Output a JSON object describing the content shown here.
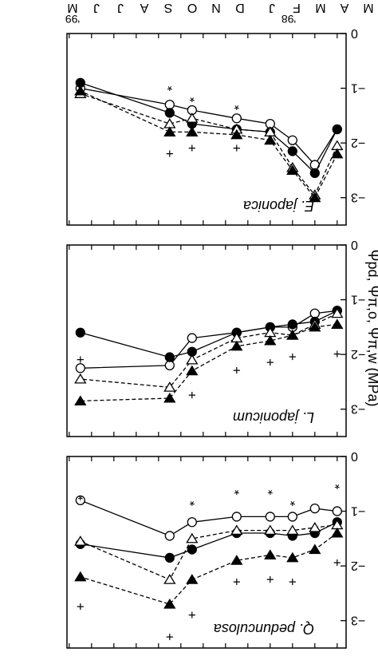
{
  "figure": {
    "orientation": "rotated-180",
    "y_axis_label": "Ψpd, Ψπ,o, Ψπ,w (MPa)",
    "x_month_labels": [
      "M",
      "A",
      "M",
      "F",
      "J",
      "D",
      "N",
      "O",
      "S",
      "A",
      "J",
      "J",
      "M"
    ],
    "year_labels": [
      "'98",
      "'99"
    ]
  },
  "chart_data": [
    {
      "type": "line",
      "panel": "top",
      "title": "Q. pedunculosa",
      "xlabel": "",
      "ylabel": "Ψpd, Ψπ,o, Ψπ,w (MPa)",
      "x": [
        0,
        1,
        2,
        3,
        4.5,
        6.5,
        7.5,
        11.5
      ],
      "ylim": [
        0,
        -3.5
      ],
      "yticks": [
        0,
        -1,
        -2,
        -3
      ],
      "series": [
        {
          "marker": "open-circle",
          "line": "solid",
          "values": [
            -1.0,
            -0.95,
            -1.1,
            -1.1,
            -1.1,
            -1.2,
            -1.45,
            -0.8
          ]
        },
        {
          "marker": "filled-circle",
          "line": "solid",
          "values": [
            -1.2,
            -1.4,
            -1.45,
            -1.4,
            -1.4,
            -1.7,
            -1.85,
            -1.6
          ]
        },
        {
          "marker": "open-triangle-down",
          "line": "dashed",
          "values": [
            -1.25,
            -1.3,
            -1.35,
            -1.35,
            -1.35,
            -1.5,
            -2.25,
            -1.55
          ]
        },
        {
          "marker": "filled-triangle-down",
          "line": "dashed",
          "values": [
            -1.4,
            -1.7,
            -1.85,
            -1.8,
            -1.9,
            -2.25,
            -2.7,
            -2.2
          ]
        }
      ],
      "annotations": {
        "plus": [
          [
            0,
            -1.95
          ],
          [
            2,
            -2.3
          ],
          [
            3,
            -2.25
          ],
          [
            4.5,
            -2.3
          ],
          [
            6.5,
            -2.9
          ],
          [
            7.5,
            -3.3
          ],
          [
            11.5,
            -2.75
          ]
        ],
        "star": [
          [
            0,
            -0.55
          ],
          [
            2,
            -0.85
          ],
          [
            3,
            -0.65
          ],
          [
            4.5,
            -0.65
          ],
          [
            6.5,
            -0.85
          ],
          [
            11.5,
            -0.75
          ]
        ]
      }
    },
    {
      "type": "line",
      "panel": "middle",
      "title": "L. japonicum",
      "xlabel": "",
      "ylabel": "",
      "x": [
        0,
        1,
        2,
        3,
        4.5,
        6.5,
        7.5,
        11.5
      ],
      "ylim": [
        0,
        -3.5
      ],
      "yticks": [
        0,
        -1,
        -2,
        -3
      ],
      "series": [
        {
          "marker": "open-circle",
          "line": "solid",
          "values": [
            -1.2,
            -1.25,
            -1.5,
            -1.5,
            -1.6,
            -1.7,
            -2.2,
            -2.25
          ]
        },
        {
          "marker": "filled-circle",
          "line": "solid",
          "values": [
            -1.2,
            -1.4,
            -1.45,
            -1.5,
            -1.6,
            -1.95,
            -2.05,
            -1.6
          ]
        },
        {
          "marker": "open-triangle-down",
          "line": "dashed",
          "values": [
            -1.25,
            -1.45,
            -1.65,
            -1.6,
            -1.7,
            -2.1,
            -2.6,
            -2.45
          ]
        },
        {
          "marker": "filled-triangle-down",
          "line": "dashed",
          "values": [
            -1.45,
            -1.5,
            -1.65,
            -1.75,
            -1.85,
            -2.3,
            -2.8,
            -2.85
          ]
        }
      ],
      "annotations": {
        "plus": [
          [
            0,
            -2.0
          ],
          [
            2,
            -2.05
          ],
          [
            3,
            -2.15
          ],
          [
            4.5,
            -2.3
          ],
          [
            6.5,
            -2.75
          ],
          [
            11.5,
            -2.1
          ]
        ],
        "star": []
      }
    },
    {
      "type": "line",
      "panel": "bottom",
      "title": "E. japonica",
      "xlabel": "",
      "ylabel": "",
      "x": [
        0,
        1,
        2,
        3,
        4.5,
        6.5,
        7.5,
        11.5
      ],
      "ylim": [
        0,
        -3.5
      ],
      "yticks": [
        0,
        -1,
        -2,
        -3
      ],
      "series": [
        {
          "marker": "open-circle",
          "line": "solid",
          "values": [
            -1.75,
            -2.4,
            -1.95,
            -1.65,
            -1.55,
            -1.4,
            -1.3,
            -1.0
          ]
        },
        {
          "marker": "filled-circle",
          "line": "solid",
          "values": [
            -1.75,
            -2.55,
            -2.15,
            -1.8,
            -1.75,
            -1.65,
            -1.45,
            -0.9
          ]
        },
        {
          "marker": "open-triangle-down",
          "line": "dashed",
          "values": [
            -2.05,
            -2.95,
            -2.45,
            -1.8,
            -1.75,
            -1.55,
            -1.65,
            -1.1
          ]
        },
        {
          "marker": "filled-triangle-down",
          "line": "dashed",
          "values": [
            -2.2,
            -3.0,
            -2.5,
            -1.95,
            -1.85,
            -1.8,
            -1.8,
            -1.05
          ]
        }
      ],
      "annotations": {
        "plus": [
          [
            6.5,
            -2.1
          ],
          [
            7.5,
            -2.2
          ],
          [
            4.5,
            -2.1
          ]
        ],
        "star": [
          [
            4.5,
            -1.35
          ],
          [
            6.5,
            -1.2
          ],
          [
            7.5,
            -1.0
          ]
        ]
      }
    }
  ]
}
